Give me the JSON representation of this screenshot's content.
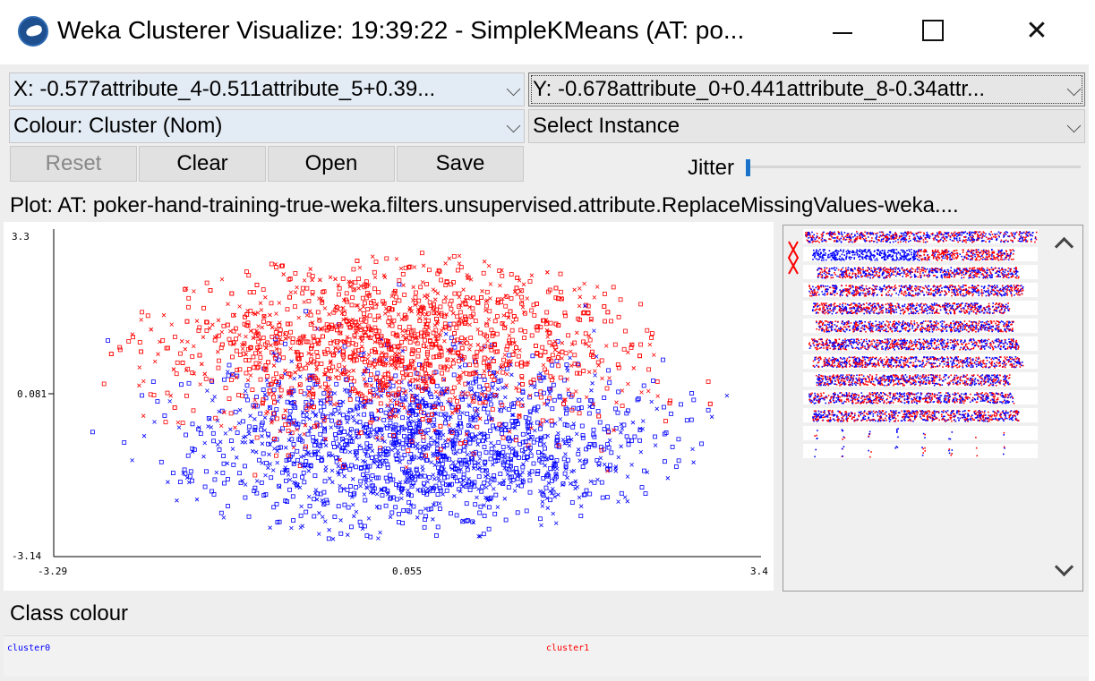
{
  "window": {
    "title": "Weka Clusterer Visualize: 19:39:22 - SimpleKMeans (AT: po...",
    "icon": "weka-bird-icon",
    "controls": {
      "minimize": "minimize-icon",
      "maximize": "maximize-icon",
      "close": "✕"
    }
  },
  "axes": {
    "x_select": "X: -0.577attribute_4-0.511attribute_5+0.39...",
    "y_select": "Y: -0.678attribute_0+0.441attribute_8-0.34attr...",
    "colour_select": "Colour: Cluster (Nom)",
    "instance_select": "Select Instance"
  },
  "buttons": {
    "reset": "Reset",
    "clear": "Clear",
    "open": "Open",
    "save": "Save"
  },
  "jitter": {
    "label": "Jitter",
    "value": 0
  },
  "plot": {
    "title": "Plot: AT: poker-hand-training-true-weka.filters.unsupervised.attribute.ReplaceMissingValues-weka...."
  },
  "chart_data": {
    "type": "scatter",
    "xlim": [
      -3.29,
      3.4
    ],
    "ylim": [
      -3.14,
      3.3
    ],
    "x_ticks": [
      "-3.29",
      "0.055",
      "3.4"
    ],
    "y_ticks": [
      "3.3",
      "0.081",
      "-3.14"
    ],
    "series": [
      {
        "name": "cluster0",
        "color": "#0000ff",
        "center": [
          0.2,
          -1.0
        ],
        "spread": [
          1.1,
          0.85
        ]
      },
      {
        "name": "cluster1",
        "color": "#ff0000",
        "center": [
          -0.1,
          1.0
        ],
        "spread": [
          1.1,
          0.85
        ]
      }
    ],
    "markers": [
      "square",
      "cross"
    ]
  },
  "attribute_panel": {
    "rows": 11
  },
  "class_colour": {
    "label": "Class colour",
    "items": [
      {
        "name": "cluster0",
        "color": "#0000ff"
      },
      {
        "name": "cluster1",
        "color": "#ff0000"
      }
    ]
  }
}
